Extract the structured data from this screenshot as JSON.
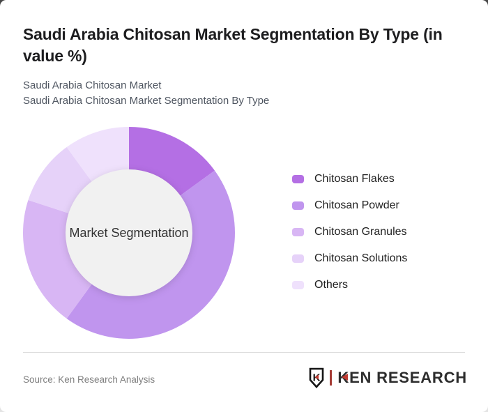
{
  "header": {
    "title": "Saudi Arabia Chitosan Market Segmentation By Type (in value %)",
    "subtitle_line1": "Saudi Arabia Chitosan Market",
    "subtitle_line2": "Saudi Arabia Chitosan Market Segmentation By Type"
  },
  "chart_data": {
    "type": "pie",
    "variant": "donut",
    "center_label": "Market Segmentation",
    "unit": "value %",
    "labels": [
      "Chitosan Flakes",
      "Chitosan Powder",
      "Chitosan Granules",
      "Chitosan Solutions",
      "Others"
    ],
    "values": [
      15,
      45,
      20,
      10,
      10
    ],
    "colors": [
      "#b46fe4",
      "#c095ee",
      "#d8b6f4",
      "#e6d2f9",
      "#efe1fc"
    ],
    "inner_hole_color": "#f1f1f1",
    "start_angle_deg": 0,
    "legend_position": "right"
  },
  "footer": {
    "source": "Source: Ken Research Analysis",
    "logo": {
      "brand": "KEN RESEARCH",
      "mark_letter": "K"
    }
  }
}
